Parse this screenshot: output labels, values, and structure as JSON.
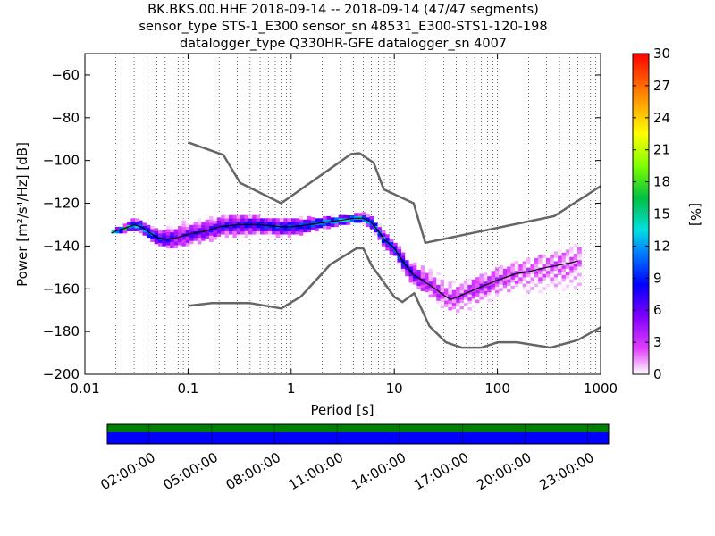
{
  "title_lines": [
    "BK.BKS.00.HHE   2018-09-14 -- 2018-09-14  (47/47 segments)",
    "sensor_type STS-1_E300 sensor_sn 48531_E300-STS1-120-198",
    "datalogger_type Q330HR-GFE datalogger_sn 4007"
  ],
  "chart_data": [
    {
      "type": "heatmap",
      "xlabel": "Period [s]",
      "ylabel": "Power [m²/s⁴/Hz] [dB]",
      "xscale": "log",
      "xlim": [
        0.01,
        1000
      ],
      "ylim": [
        -200,
        -50
      ],
      "x_ticks": [
        0.01,
        0.1,
        1,
        10,
        100,
        1000
      ],
      "x_tick_labels": [
        "0.01",
        "0.1",
        "1",
        "10",
        "100",
        "1000"
      ],
      "y_ticks": [
        -200,
        -180,
        -160,
        -140,
        -120,
        -100,
        -80,
        -60
      ],
      "y_tick_labels": [
        "−200",
        "−180",
        "−160",
        "−140",
        "−120",
        "−100",
        "−80",
        "−60"
      ],
      "grid": "vertical dotted",
      "colorbar": {
        "label": "[%]",
        "range": [
          0,
          30
        ],
        "ticks": [
          "0",
          "3",
          "6",
          "9",
          "12",
          "15",
          "18",
          "21",
          "24",
          "27",
          "30"
        ]
      },
      "median": [
        [
          0.018,
          -134
        ],
        [
          0.02,
          -133
        ],
        [
          0.025,
          -131.5
        ],
        [
          0.03,
          -130
        ],
        [
          0.035,
          -131
        ],
        [
          0.04,
          -133
        ],
        [
          0.05,
          -136
        ],
        [
          0.06,
          -137
        ],
        [
          0.08,
          -136
        ],
        [
          0.1,
          -134.5
        ],
        [
          0.15,
          -133
        ],
        [
          0.2,
          -131
        ],
        [
          0.3,
          -130
        ],
        [
          0.5,
          -130
        ],
        [
          0.8,
          -131
        ],
        [
          1,
          -131
        ],
        [
          1.5,
          -130
        ],
        [
          2,
          -129
        ],
        [
          3,
          -128
        ],
        [
          4,
          -127
        ],
        [
          5,
          -127
        ],
        [
          6,
          -129
        ],
        [
          7,
          -133
        ],
        [
          8,
          -137
        ],
        [
          10,
          -141
        ],
        [
          12,
          -147
        ],
        [
          15,
          -153
        ],
        [
          20,
          -157
        ],
        [
          25,
          -160
        ],
        [
          30,
          -163
        ],
        [
          35,
          -165
        ],
        [
          40,
          -164
        ],
        [
          50,
          -162
        ],
        [
          70,
          -159
        ],
        [
          100,
          -156
        ],
        [
          150,
          -153
        ],
        [
          200,
          -152
        ],
        [
          300,
          -150
        ],
        [
          500,
          -148
        ],
        [
          600,
          -147
        ]
      ],
      "psd_band": [
        [
          0.018,
          -134,
          -133
        ],
        [
          0.025,
          -133,
          -130
        ],
        [
          0.03,
          -132,
          -127
        ],
        [
          0.04,
          -135,
          -129
        ],
        [
          0.05,
          -139,
          -131
        ],
        [
          0.06,
          -140,
          -131
        ],
        [
          0.08,
          -141,
          -129
        ],
        [
          0.1,
          -139,
          -128
        ],
        [
          0.15,
          -138,
          -127
        ],
        [
          0.2,
          -136,
          -126
        ],
        [
          0.3,
          -136,
          -126
        ],
        [
          0.5,
          -136,
          -127
        ],
        [
          0.8,
          -136,
          -128
        ],
        [
          1,
          -136,
          -128
        ],
        [
          1.5,
          -134,
          -127
        ],
        [
          2,
          -132,
          -127
        ],
        [
          3,
          -130,
          -126
        ],
        [
          4,
          -129,
          -125
        ],
        [
          5,
          -129,
          -125
        ],
        [
          6,
          -131,
          -126
        ],
        [
          7,
          -136,
          -129
        ],
        [
          8,
          -140,
          -133
        ],
        [
          10,
          -145,
          -138
        ],
        [
          12,
          -151,
          -143
        ],
        [
          15,
          -157,
          -147
        ],
        [
          20,
          -162,
          -149
        ],
        [
          25,
          -165,
          -152
        ],
        [
          30,
          -169,
          -155
        ],
        [
          35,
          -170,
          -156
        ],
        [
          40,
          -171,
          -157
        ],
        [
          50,
          -170,
          -156
        ],
        [
          70,
          -167,
          -154
        ],
        [
          100,
          -164,
          -150
        ],
        [
          150,
          -162,
          -148
        ],
        [
          200,
          -162,
          -146
        ],
        [
          300,
          -162,
          -144
        ],
        [
          500,
          -160,
          -141
        ],
        [
          650,
          -160,
          -140
        ]
      ],
      "nhnm": [
        [
          0.1,
          -91.5
        ],
        [
          0.22,
          -97.4
        ],
        [
          0.32,
          -110.5
        ],
        [
          0.8,
          -120
        ],
        [
          3.8,
          -97
        ],
        [
          4.6,
          -96.6
        ],
        [
          6.3,
          -101
        ],
        [
          7.9,
          -113.5
        ],
        [
          15.4,
          -120
        ],
        [
          20,
          -138.5
        ],
        [
          354.8,
          -126
        ],
        [
          1000,
          -112
        ]
      ],
      "nlnm": [
        [
          0.1,
          -168
        ],
        [
          0.17,
          -166.7
        ],
        [
          0.4,
          -166.7
        ],
        [
          0.8,
          -169.2
        ],
        [
          1.24,
          -163.7
        ],
        [
          2.4,
          -148.6
        ],
        [
          4.3,
          -141.1
        ],
        [
          5,
          -141.1
        ],
        [
          6,
          -149
        ],
        [
          10,
          -163.8
        ],
        [
          12,
          -166.2
        ],
        [
          15.6,
          -162.1
        ],
        [
          21.9,
          -177.5
        ],
        [
          31.6,
          -185
        ],
        [
          45,
          -187.5
        ],
        [
          70,
          -187.5
        ],
        [
          101,
          -185
        ],
        [
          154,
          -185
        ],
        [
          328,
          -187.5
        ],
        [
          600,
          -184
        ],
        [
          1000,
          -178
        ]
      ]
    },
    {
      "type": "bar",
      "title": "",
      "series": [
        {
          "name": "",
          "color": "#0000ff"
        },
        {
          "name": "",
          "color": "#008000"
        }
      ],
      "x_tick_labels": [
        "02:00:00",
        "05:00:00",
        "08:00:00",
        "11:00:00",
        "14:00:00",
        "17:00:00",
        "20:00:00",
        "23:00:00"
      ]
    }
  ]
}
